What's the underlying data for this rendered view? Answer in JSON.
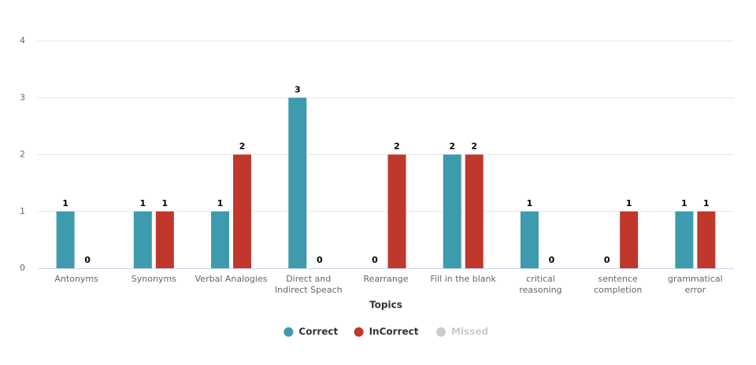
{
  "chart_data": {
    "type": "bar",
    "x_label": "Topics",
    "categories": [
      "Antonyms",
      "Synonyms",
      "Verbal Analogies",
      "Direct and Indirect Speach",
      "Rearrange",
      "Fill in the blank",
      "critical reasoning",
      "sentence completion",
      "grammatical error"
    ],
    "series": [
      {
        "name": "Correct",
        "color": "#3e9aad",
        "values": [
          1,
          1,
          1,
          3,
          0,
          2,
          1,
          0,
          1
        ]
      },
      {
        "name": "InCorrect",
        "color": "#c0372c",
        "values": [
          0,
          1,
          2,
          0,
          2,
          2,
          0,
          1,
          1
        ]
      },
      {
        "name": "Missed",
        "color": "#cccccc",
        "visible": false
      }
    ],
    "ylim": [
      0,
      4
    ],
    "yticks": [
      0,
      1,
      2,
      3,
      4
    ],
    "grid": true,
    "legend": "bottom"
  }
}
